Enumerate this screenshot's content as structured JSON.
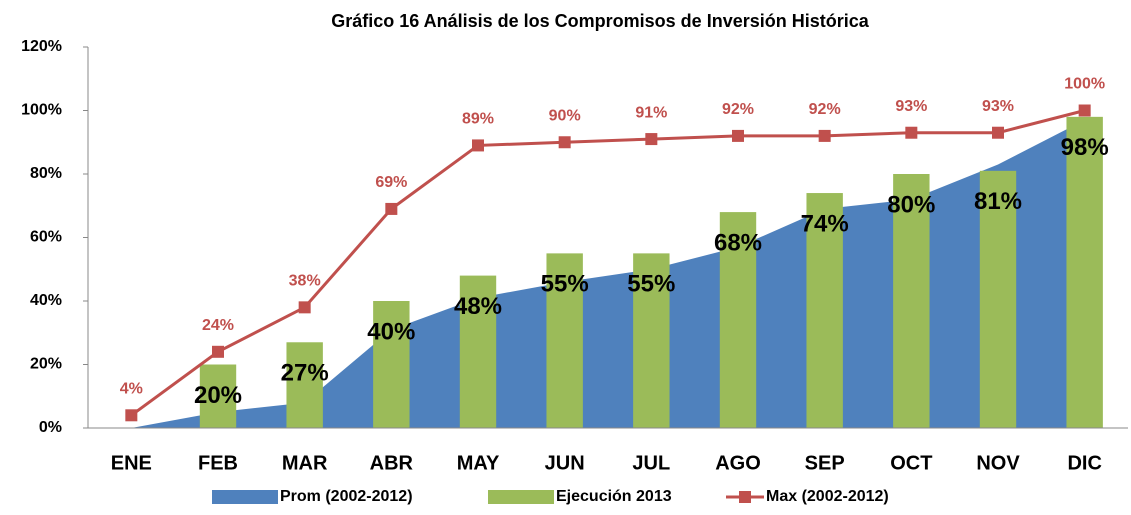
{
  "chart_data": {
    "type": "combo",
    "title": "Gráfico 16 Análisis de los Compromisos de Inversión  Histórica",
    "categories": [
      "ENE",
      "FEB",
      "MAR",
      "ABR",
      "MAY",
      "JUN",
      "JUL",
      "AGO",
      "SEP",
      "OCT",
      "NOV",
      "DIC"
    ],
    "series": [
      {
        "name": "Prom (2002-2012)",
        "type": "area",
        "color": "#4f81bd",
        "values": [
          0,
          5,
          8,
          31,
          41,
          46,
          50,
          57,
          69,
          72,
          83,
          97
        ]
      },
      {
        "name": "Ejecución 2013",
        "type": "bar",
        "color": "#9bbb59",
        "values": [
          null,
          20,
          27,
          40,
          48,
          55,
          55,
          68,
          74,
          80,
          81,
          98
        ],
        "value_labels": [
          null,
          "20%",
          "27%",
          "40%",
          "48%",
          "55%",
          "55%",
          "68%",
          "74%",
          "80%",
          "81%",
          "98%"
        ]
      },
      {
        "name": "Max (2002-2012)",
        "type": "line",
        "color": "#c0504d",
        "values": [
          4,
          24,
          38,
          69,
          89,
          90,
          91,
          92,
          92,
          93,
          93,
          100
        ],
        "value_labels": [
          "4%",
          "24%",
          "38%",
          "69%",
          "89%",
          "90%",
          "91%",
          "92%",
          "92%",
          "93%",
          "93%",
          "100%"
        ]
      }
    ],
    "ylim": [
      0,
      120
    ],
    "yticks": [
      {
        "value": 0,
        "label": "0%"
      },
      {
        "value": 20,
        "label": "20%"
      },
      {
        "value": 40,
        "label": "40%"
      },
      {
        "value": 60,
        "label": "60%"
      },
      {
        "value": 80,
        "label": "80%"
      },
      {
        "value": 100,
        "label": "100%"
      },
      {
        "value": 120,
        "label": "120%"
      }
    ],
    "grid": false,
    "legend": "bottom"
  }
}
